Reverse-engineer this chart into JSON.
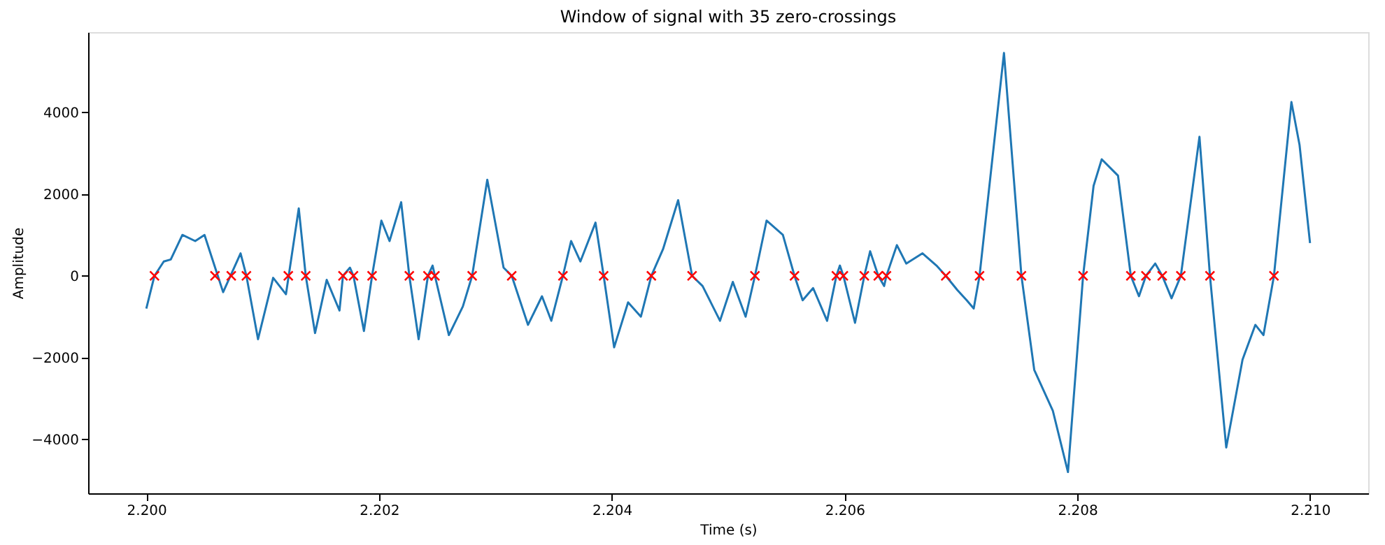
{
  "chart_data": {
    "type": "line",
    "title": "Window of signal with 35 zero-crossings",
    "xlabel": "Time (s)",
    "ylabel": "Amplitude",
    "xlim": [
      2.1995,
      2.2105
    ],
    "ylim": [
      -5320,
      5960
    ],
    "xticks": [
      {
        "value": 2.2,
        "label": "2.200"
      },
      {
        "value": 2.202,
        "label": "2.202"
      },
      {
        "value": 2.204,
        "label": "2.204"
      },
      {
        "value": 2.206,
        "label": "2.206"
      },
      {
        "value": 2.208,
        "label": "2.208"
      },
      {
        "value": 2.21,
        "label": "2.210"
      }
    ],
    "yticks": [
      -4000,
      -2000,
      0,
      2000,
      4000
    ],
    "grid": false,
    "legend": false,
    "series": [
      {
        "color": "#1f77b4",
        "marker": "none",
        "line_style": "solid",
        "x": [
          2.2,
          2.20007,
          2.20015,
          2.20021,
          2.20031,
          2.20042,
          2.2005,
          2.20058,
          2.20066,
          2.20081,
          2.20086,
          2.20096,
          2.20109,
          2.2012,
          2.20131,
          2.20137,
          2.20145,
          2.20155,
          2.20166,
          2.20169,
          2.20175,
          2.20178,
          2.20187,
          2.20194,
          2.20202,
          2.20209,
          2.20219,
          2.20226,
          2.20234,
          2.20242,
          2.20246,
          2.20248,
          2.2026,
          2.20272,
          2.2028,
          2.20293,
          2.20307,
          2.20314,
          2.20328,
          2.2034,
          2.20348,
          2.20358,
          2.20365,
          2.20373,
          2.20386,
          2.20393,
          2.20402,
          2.20414,
          2.20425,
          2.20434,
          2.20444,
          2.20457,
          2.20469,
          2.20478,
          2.20493,
          2.20504,
          2.20515,
          2.20523,
          2.20533,
          2.20547,
          2.20557,
          2.20564,
          2.20573,
          2.20585,
          2.20593,
          2.20596,
          2.20599,
          2.20609,
          2.20617,
          2.20622,
          2.20629,
          2.20634,
          2.20636,
          2.20645,
          2.20653,
          2.20667,
          2.20679,
          2.20687,
          2.20697,
          2.20705,
          2.20711,
          2.20716,
          2.20737,
          2.20752,
          2.20763,
          2.20779,
          2.20792,
          2.20805,
          2.20814,
          2.20821,
          2.20835,
          2.20846,
          2.20853,
          2.20859,
          2.20867,
          2.20873,
          2.20881,
          2.20889,
          2.20905,
          2.20914,
          2.20928,
          2.20942,
          2.20953,
          2.2096,
          2.20969,
          2.20984,
          2.20991,
          2.21
        ],
        "values": [
          -800,
          0,
          350,
          400,
          1000,
          850,
          1000,
          300,
          -400,
          550,
          0,
          -1550,
          -50,
          -450,
          1650,
          0,
          -1400,
          -100,
          -850,
          0,
          200,
          0,
          -1350,
          0,
          1350,
          850,
          1800,
          0,
          -1550,
          0,
          250,
          0,
          -1450,
          -750,
          0,
          2350,
          200,
          0,
          -1200,
          -500,
          -1100,
          0,
          850,
          350,
          1300,
          0,
          -1750,
          -650,
          -1000,
          0,
          650,
          1850,
          0,
          -250,
          -1100,
          -150,
          -1000,
          0,
          1350,
          1000,
          0,
          -600,
          -300,
          -1100,
          0,
          250,
          0,
          -1150,
          0,
          600,
          0,
          -250,
          0,
          750,
          300,
          550,
          250,
          0,
          -350,
          -600,
          -800,
          0,
          5450,
          0,
          -2300,
          -3300,
          -4800,
          0,
          2200,
          2850,
          2450,
          0,
          -500,
          0,
          300,
          0,
          -550,
          0,
          3400,
          0,
          -4200,
          -2050,
          -1200,
          -1450,
          0,
          4250,
          3200,
          800
        ]
      },
      {
        "type": "scatter",
        "color": "#ff0000",
        "marker": "cross",
        "x": [
          2.20007,
          2.20059,
          2.20073,
          2.20086,
          2.20122,
          2.20137,
          2.20169,
          2.20178,
          2.20194,
          2.20226,
          2.20242,
          2.20248,
          2.2028,
          2.20314,
          2.20358,
          2.20393,
          2.20434,
          2.20469,
          2.20523,
          2.20557,
          2.20593,
          2.20599,
          2.20617,
          2.20629,
          2.20636,
          2.20687,
          2.20716,
          2.20752,
          2.20805,
          2.20846,
          2.20859,
          2.20873,
          2.20889,
          2.20914,
          2.20969
        ],
        "values": [
          0,
          0,
          0,
          0,
          0,
          0,
          0,
          0,
          0,
          0,
          0,
          0,
          0,
          0,
          0,
          0,
          0,
          0,
          0,
          0,
          0,
          0,
          0,
          0,
          0,
          0,
          0,
          0,
          0,
          0,
          0,
          0,
          0,
          0,
          0
        ]
      }
    ]
  }
}
